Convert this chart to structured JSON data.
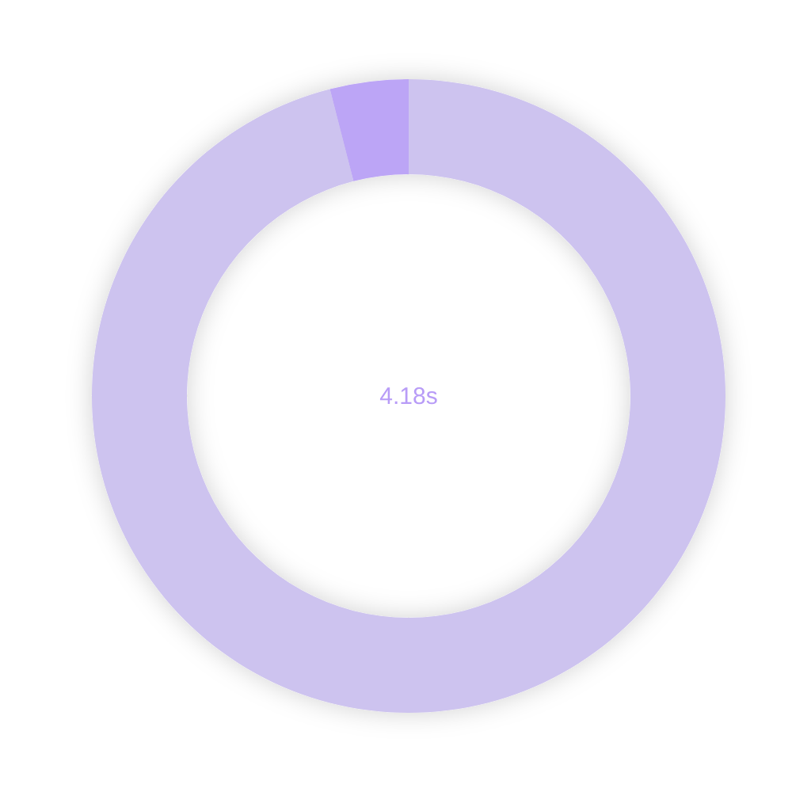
{
  "chart_data": {
    "type": "donut",
    "categories": [
      null,
      null
    ],
    "values": [
      96,
      4
    ],
    "colors": [
      "#cdc3ef",
      "#bca5f6"
    ],
    "annotations": [
      "4.18s"
    ]
  }
}
